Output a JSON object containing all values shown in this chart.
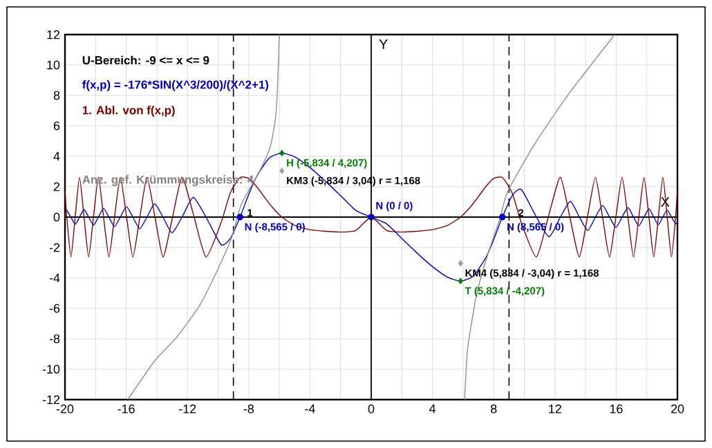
{
  "chart_data": {
    "type": "line",
    "xlabel": "X",
    "ylabel": "Y",
    "xlim": [
      -20,
      20
    ],
    "ylim": [
      -12,
      12
    ],
    "xticks": [
      -20,
      -16,
      -12,
      -8,
      -4,
      0,
      4,
      8,
      12,
      16,
      20
    ],
    "yticks": [
      -12,
      -10,
      -8,
      -6,
      -4,
      -2,
      0,
      2,
      4,
      6,
      8,
      10,
      12
    ],
    "grid": true,
    "legend": "top left",
    "marker": "none",
    "series": [
      {
        "name": "f(x,p) = -176*SIN(X^3/200)/(X^2+1)",
        "color": "#0000c0",
        "x": [
          -20,
          -19.88,
          -19.61,
          -19.334,
          -19.05,
          -18.755,
          -18.453,
          -18.14,
          -17.816,
          -17.48,
          -17.13,
          -16.765,
          -16.384,
          -15.985,
          -15.564,
          -15.12,
          -14.644,
          -14.14,
          -13.596,
          -13.006,
          -12.355,
          -11.623,
          -10.79,
          -9.805,
          -9.2,
          -8.565,
          -8,
          -7.5,
          -6.797,
          -6.5,
          -5.834,
          -5,
          -4,
          -3,
          -2,
          -1,
          0,
          1,
          2,
          3,
          4,
          5,
          5.834,
          6.5,
          6.797,
          7.5,
          8,
          8.565,
          9.2,
          9.805,
          10.79,
          11.623,
          12.355,
          13.006,
          13.596,
          14.14,
          14.644,
          15.12,
          15.564,
          15.985,
          16.384,
          16.765,
          17.13,
          17.48,
          17.816,
          18.14,
          18.453,
          18.755,
          19.05,
          19.334,
          19.61,
          19.88,
          20
        ],
        "values": [
          0.327,
          0.444,
          0,
          -0.47,
          0,
          0.499,
          0,
          -0.533,
          0,
          0.574,
          0,
          -0.624,
          0,
          0.686,
          0,
          -0.767,
          0,
          0.876,
          0,
          -1.034,
          0,
          1.293,
          0,
          -1.812,
          -1.405,
          0,
          1.486,
          2.639,
          3.729,
          3.99,
          4.207,
          3.961,
          3.257,
          2.369,
          1.408,
          0.44,
          0,
          -0.44,
          -1.408,
          -2.369,
          -3.257,
          -3.961,
          -4.207,
          -3.99,
          -3.729,
          -2.639,
          -1.486,
          0,
          1.405,
          1.812,
          0,
          -1.293,
          0,
          1.034,
          0,
          -0.876,
          0,
          0.767,
          0,
          -0.686,
          0,
          0.624,
          0,
          -0.574,
          0,
          0.533,
          0,
          -0.499,
          0,
          0.47,
          0,
          -0.444,
          -0.327
        ]
      },
      {
        "name": "1. Abl. von f(x,p)",
        "color": "#800000",
        "x": [
          -20,
          -19.88,
          -19.61,
          -19.334,
          -19.05,
          -18.755,
          -18.453,
          -18.14,
          -17.816,
          -17.48,
          -17.13,
          -16.765,
          -16.384,
          -15.985,
          -15.564,
          -15.12,
          -14.644,
          -14.14,
          -13.596,
          -13.006,
          -12.355,
          -11.623,
          -10.79,
          -9.805,
          -9.2,
          -8.565,
          -8,
          -7.5,
          -7,
          -6.5,
          -5.834,
          -5,
          -4,
          -3,
          -2,
          -1,
          0,
          1,
          2,
          3,
          4,
          5,
          5.834,
          6.5,
          7,
          7.5,
          8,
          8.565,
          9.2,
          9.805,
          10.79,
          11.623,
          12.355,
          13.006,
          13.596,
          14.14,
          14.644,
          15.12,
          15.564,
          15.985,
          16.384,
          16.765,
          17.13,
          17.48,
          17.816,
          18.14,
          18.453,
          18.755,
          19.05,
          19.334,
          19.61,
          19.88,
          20
        ],
        "values": [
          1.758,
          0,
          -2.63,
          0,
          2.63,
          0,
          -2.63,
          0,
          2.63,
          0,
          -2.63,
          0,
          2.63,
          0.05,
          -2.63,
          -0.07,
          2.628,
          0.1,
          -2.626,
          -0.158,
          2.623,
          0.221,
          -2.618,
          -0.366,
          1.602,
          2.604,
          2.537,
          2.022,
          1.348,
          0.692,
          0,
          -0.536,
          -0.826,
          -0.933,
          -0.984,
          -0.88,
          0,
          -0.88,
          -0.984,
          -0.933,
          -0.826,
          -0.536,
          0,
          0.692,
          1.348,
          2.022,
          2.537,
          2.604,
          1.602,
          -0.366,
          -2.618,
          0.221,
          2.623,
          -0.158,
          -2.626,
          0.1,
          2.628,
          -0.07,
          -2.63,
          0.05,
          2.63,
          0,
          -2.63,
          0,
          2.63,
          0,
          -2.63,
          0,
          2.63,
          0,
          -2.63,
          0,
          1.758
        ]
      },
      {
        "color": "#909090",
        "x": [
          -15.9,
          -14.1,
          -12.7,
          -11.2,
          -10,
          -9.1,
          -8.5,
          -7.4,
          -6.6,
          -6.2,
          -6
        ],
        "values": [
          -12,
          -9.4,
          -7.9,
          -5.8,
          -3.4,
          -1.3,
          0.8,
          2.8,
          4.6,
          7,
          12
        ]
      },
      {
        "color": "#909090",
        "x": [
          6.1,
          6.15,
          6.3,
          6.9,
          7.6,
          8.4,
          8.8,
          9.4,
          10.8,
          12.9,
          15.9
        ],
        "values": [
          -12,
          -11,
          -8.6,
          -5,
          -2.5,
          -0.1,
          1.4,
          2.6,
          5,
          8.1,
          12
        ]
      },
      {
        "type": "scatter",
        "marker": "diamond",
        "color": "#008000",
        "x": [
          -5.834,
          5.834
        ],
        "values": [
          4.207,
          -4.207
        ]
      },
      {
        "type": "scatter",
        "marker": "circle",
        "color": "#0000c0",
        "x": [
          -8.565,
          0,
          8.565
        ],
        "values": [
          0,
          0,
          0
        ]
      },
      {
        "type": "scatter",
        "marker": "diamond",
        "color": "#a0a0a0",
        "x": [
          -5.834,
          5.834
        ],
        "values": [
          3.04,
          -3.04
        ]
      }
    ],
    "ref_lines": [
      {
        "axis": "x",
        "value": -9,
        "color": "#000000",
        "line_style": "dashed"
      },
      {
        "axis": "x",
        "value": 9,
        "color": "#000000",
        "line_style": "dashed"
      }
    ],
    "annotations": [
      "U-Bereich: -9 <= x <= 9",
      "Anz. gef. Krümmungskreise: 4",
      {
        "text": "H (-5,834 / 4,207)",
        "x": -5.834,
        "y": 4.207
      },
      {
        "text": "T (5,834 / -4,207)",
        "x": 5.834,
        "y": -4.207
      },
      {
        "text": "N (-8,565 / 0)",
        "x": -8.565,
        "y": 0
      },
      {
        "text": "N (0 / 0)",
        "x": 0,
        "y": 0
      },
      {
        "text": "N (8,565 / 0)",
        "x": 8.565,
        "y": 0
      },
      {
        "text": "KM3 (-5,834 / 3,04) r = 1,168",
        "x": -5.834,
        "y": 3.04
      },
      {
        "text": "KM4 (5,834 / -3,04) r = 1,168",
        "x": 5.834,
        "y": -3.04
      },
      {
        "text": "1",
        "x": -8.4,
        "y": 0.9
      },
      {
        "text": "2",
        "x": 9.3,
        "y": 0.9
      }
    ]
  }
}
